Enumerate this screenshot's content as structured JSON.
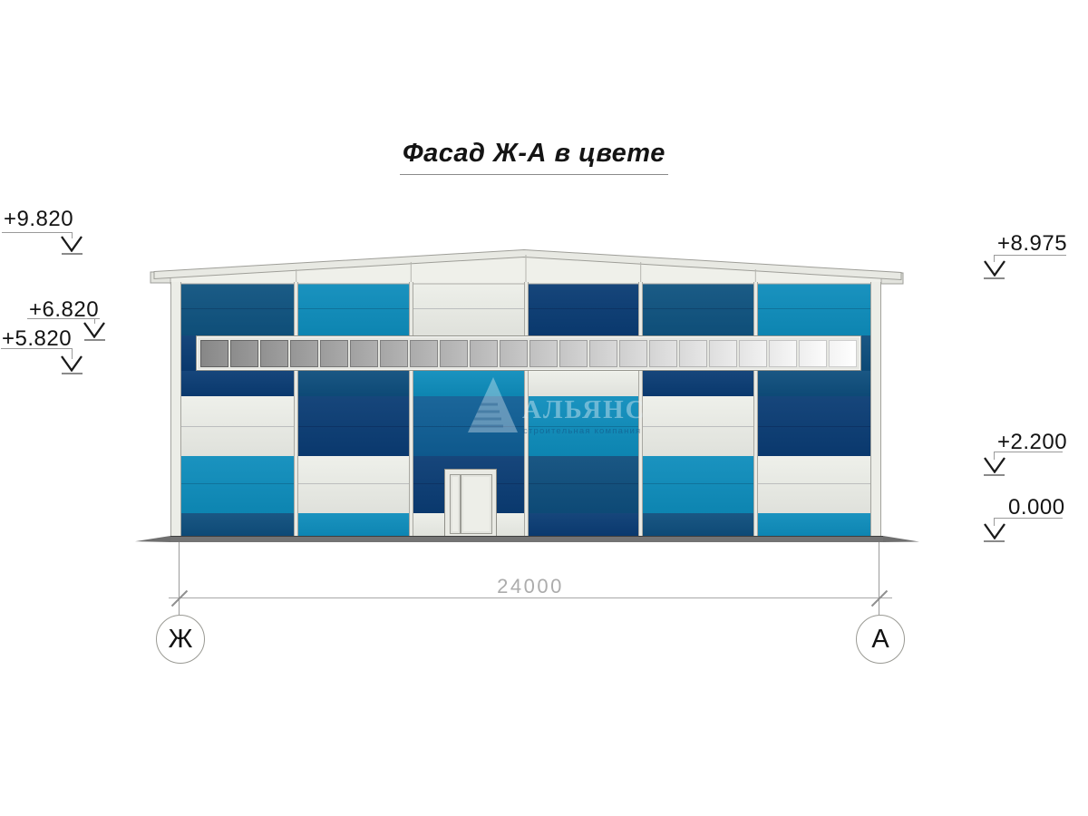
{
  "title": {
    "text": "Фасад Ж-А в цвете"
  },
  "axes": {
    "left": "Ж",
    "right": "А"
  },
  "dimension": {
    "label": "24000"
  },
  "elevation_marks": {
    "left": [
      {
        "value": "+9.820"
      },
      {
        "value": "+6.820"
      },
      {
        "value": "+5.820"
      }
    ],
    "right": [
      {
        "value": "+8.975"
      },
      {
        "value": "+2.200"
      },
      {
        "value": "0.000"
      }
    ]
  },
  "watermark": {
    "name": "АЛЬЯНС",
    "tagline": "строительная компания"
  },
  "palette": {
    "navy": "#0A3C74",
    "steel": "#0F5380",
    "steel2": "#0E4E7D",
    "blue": "#0F5E95",
    "cyan": "#0E8DBC",
    "white": "#EDEFE9",
    "frame": "#E5E6E1",
    "ground": "#747474"
  },
  "building": {
    "columns": [
      {
        "bands": {
          "top": "steel",
          "a": "navy",
          "b": "white",
          "c": "cyan",
          "d": "steel2"
        }
      },
      {
        "bands": {
          "top": "cyan",
          "a": "steel2",
          "b": "navy",
          "c": "white",
          "d": "cyan"
        }
      },
      {
        "bands": {
          "top": "white",
          "a": "cyan",
          "b": "blue",
          "c": "navy",
          "d": "white"
        }
      },
      {
        "bands": {
          "top": "navy",
          "a": "white",
          "b": "cyan",
          "c": "steel2",
          "d": "navy"
        }
      },
      {
        "bands": {
          "top": "steel",
          "a": "navy",
          "b": "white",
          "c": "cyan",
          "d": "steel2"
        }
      },
      {
        "bands": {
          "top": "cyan",
          "a": "steel2",
          "b": "navy",
          "c": "white",
          "d": "cyan"
        }
      }
    ],
    "window": {
      "pane_count": 22
    }
  }
}
